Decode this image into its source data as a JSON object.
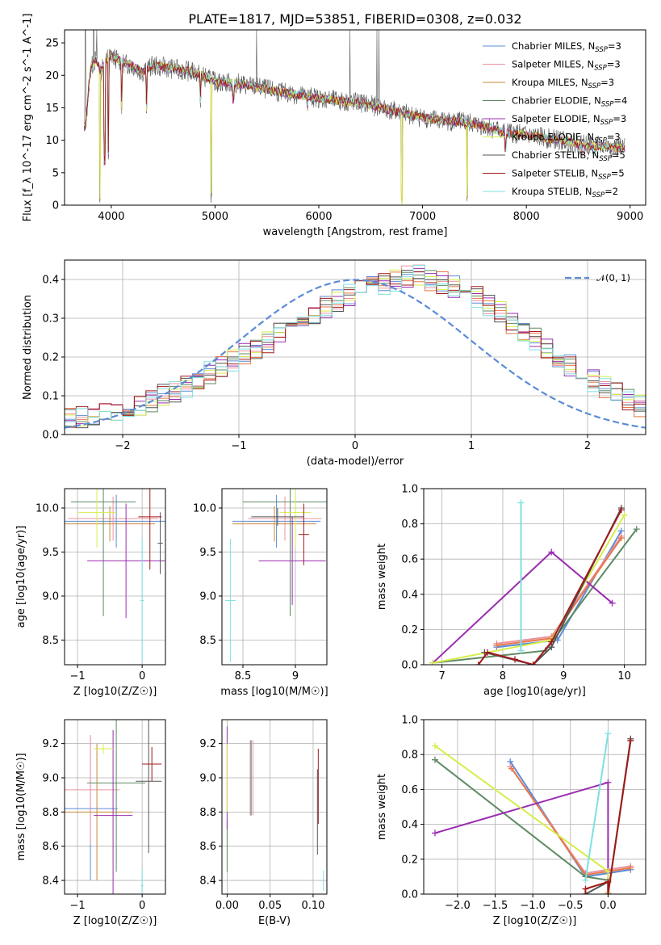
{
  "page": {
    "title": "PLATE=1817, MJD=53851, FIBERID=0308, z=0.032"
  },
  "colors": {
    "Chabrier MILES": "#5b8bd6",
    "Salpeter MILES": "#e9939f",
    "Kroupa MILES": "#c98a3a",
    "Chabrier ELODIE": "#5f8a63",
    "Salpeter ELODIE": "#9b2cb0",
    "Kroupa ELODIE": "#d6ee4a",
    "Chabrier STELIB": "#555555",
    "Salpeter STELIB": "#a11a1a",
    "Kroupa STELIB": "#7fe0e0",
    "orange": "#e8784a",
    "normal": "#5b8bd6"
  },
  "chart_data": [
    {
      "id": "spectrum",
      "type": "line",
      "title": "PLATE=1817, MJD=53851, FIBERID=0308, z=0.032",
      "xlabel": "wavelength [Angstrom, rest frame]",
      "ylabel": "Flux [f_λ 10^-17 erg cm^-2 s^-1 A^-1]",
      "xlim": [
        3550,
        9150
      ],
      "ylim": [
        0,
        27
      ],
      "xticks": [
        4000,
        5000,
        6000,
        7000,
        8000,
        9000
      ],
      "yticks": [
        0,
        5,
        10,
        15,
        20,
        25
      ],
      "grid": false,
      "legend_position": "top-right",
      "legend": [
        {
          "name": "Chabrier MILES",
          "sub": "SSP",
          "n": "3"
        },
        {
          "name": "Salpeter MILES",
          "sub": "SSP",
          "n": "3"
        },
        {
          "name": "Kroupa MILES",
          "sub": "SSP",
          "n": "3"
        },
        {
          "name": "Chabrier ELODIE",
          "sub": "SSP",
          "n": "4"
        },
        {
          "name": "Salpeter ELODIE",
          "sub": "SSP",
          "n": "3"
        },
        {
          "name": "Kroupa ELODIE",
          "sub": "SSP",
          "n": "3"
        },
        {
          "name": "Chabrier STELIB",
          "sub": "SSP",
          "n": "5"
        },
        {
          "name": "Salpeter STELIB",
          "sub": "SSP",
          "n": "5"
        },
        {
          "name": "Kroupa STELIB",
          "sub": "SSP",
          "n": "2"
        }
      ],
      "continuum": [
        [
          3750,
          12
        ],
        [
          3800,
          21
        ],
        [
          3850,
          22.5
        ],
        [
          3900,
          20.5
        ],
        [
          3950,
          22.5
        ],
        [
          4000,
          23
        ],
        [
          4100,
          22
        ],
        [
          4200,
          21.5
        ],
        [
          4300,
          20.5
        ],
        [
          4400,
          21.5
        ],
        [
          4600,
          21
        ],
        [
          4800,
          20.5
        ],
        [
          5000,
          19
        ],
        [
          5200,
          18.8
        ],
        [
          5400,
          18.2
        ],
        [
          5600,
          17.5
        ],
        [
          5800,
          17
        ],
        [
          6000,
          16.5
        ],
        [
          6200,
          16
        ],
        [
          6400,
          15.8
        ],
        [
          6600,
          15
        ],
        [
          6800,
          14.2
        ],
        [
          7000,
          13.5
        ],
        [
          7200,
          13
        ],
        [
          7400,
          12.8
        ],
        [
          7600,
          12.2
        ],
        [
          7800,
          11.2
        ],
        [
          8000,
          10.8
        ],
        [
          8200,
          10.3
        ],
        [
          8400,
          9.8
        ],
        [
          8600,
          9.2
        ],
        [
          8800,
          9
        ],
        [
          8900,
          8.8
        ]
      ],
      "dips": [
        [
          3890,
          0
        ],
        [
          3935,
          6
        ],
        [
          3970,
          7
        ],
        [
          4100,
          14
        ],
        [
          4340,
          14
        ],
        [
          4860,
          15
        ],
        [
          4965,
          0
        ],
        [
          5175,
          15.5
        ],
        [
          5890,
          14.5
        ],
        [
          6800,
          0
        ],
        [
          7430,
          0
        ],
        [
          7800,
          8
        ],
        [
          8500,
          8
        ],
        [
          8540,
          7.5
        ],
        [
          8660,
          7.5
        ]
      ],
      "spikes": [
        [
          3750,
          27
        ],
        [
          3830,
          27
        ],
        [
          3860,
          27
        ],
        [
          5400,
          27
        ],
        [
          6300,
          27
        ],
        [
          6560,
          27
        ],
        [
          6580,
          27
        ]
      ]
    },
    {
      "id": "residuals",
      "type": "line",
      "xlabel": "(data-model)/error",
      "ylabel": "Normed distribution",
      "xlim": [
        -2.5,
        2.5
      ],
      "ylim": [
        0,
        0.45
      ],
      "xticks": [
        -2,
        -1,
        0,
        1,
        2
      ],
      "yticks": [
        0.0,
        0.1,
        0.2,
        0.3,
        0.4
      ],
      "grid": true,
      "legend_position": "top-right",
      "legend": [
        {
          "name": "𝒩(0, 1)"
        }
      ],
      "bin_width": 0.1,
      "base_hist": [
        0.04,
        0.045,
        0.05,
        0.055,
        0.06,
        0.065,
        0.075,
        0.085,
        0.1,
        0.11,
        0.125,
        0.14,
        0.16,
        0.175,
        0.19,
        0.205,
        0.22,
        0.24,
        0.26,
        0.28,
        0.3,
        0.315,
        0.33,
        0.345,
        0.36,
        0.37,
        0.38,
        0.39,
        0.4,
        0.41,
        0.41,
        0.4,
        0.39,
        0.38,
        0.37,
        0.355,
        0.335,
        0.315,
        0.29,
        0.27,
        0.245,
        0.22,
        0.2,
        0.18,
        0.16,
        0.14,
        0.12,
        0.105,
        0.09,
        0.075
      ]
    },
    {
      "id": "age-vs-Z",
      "type": "scatter",
      "xlabel": "Z [log10(Z/Z☉)]",
      "ylabel": "age [log10(age/yr)]",
      "xlim": [
        -1.2,
        0.36
      ],
      "ylim": [
        8.22,
        10.22
      ],
      "xticks": [
        -1,
        0
      ],
      "yticks": [
        8.5,
        9.0,
        9.5,
        10.0
      ],
      "grid": true,
      "points": [
        {
          "series": "Chabrier MILES",
          "x": -0.4,
          "xerr": 0.8,
          "y": 9.85,
          "yerr": 0.3
        },
        {
          "series": "Salpeter MILES",
          "x": -0.45,
          "xerr": 0.7,
          "y": 9.88,
          "yerr": 0.25
        },
        {
          "series": "Kroupa MILES",
          "x": -0.5,
          "xerr": 0.7,
          "y": 9.82,
          "yerr": 0.2
        },
        {
          "series": "Chabrier ELODIE",
          "x": -0.6,
          "xerr": 0.5,
          "y": 10.07,
          "yerr": 1.3
        },
        {
          "series": "Salpeter ELODIE",
          "x": -0.25,
          "xerr": 0.6,
          "y": 9.4,
          "yerr": 0.65
        },
        {
          "series": "Kroupa ELODIE",
          "x": -0.7,
          "xerr": 0.3,
          "y": 9.95,
          "yerr": 0.4
        },
        {
          "series": "Chabrier STELIB",
          "x": 0.28,
          "xerr": 0.04,
          "y": 9.6,
          "yerr": 0.35
        },
        {
          "series": "Salpeter STELIB",
          "x": 0.12,
          "xerr": 0.18,
          "y": 9.9,
          "yerr": 0.6
        },
        {
          "series": "Kroupa STELIB",
          "x": 0.0,
          "xerr": 0.03,
          "y": 8.95,
          "yerr": 0.7
        }
      ]
    },
    {
      "id": "age-vs-mass",
      "type": "scatter",
      "xlabel": "mass [log10(M/M☉)]",
      "ylabel": "",
      "xlim": [
        8.3,
        9.3
      ],
      "ylim": [
        8.22,
        10.22
      ],
      "xticks": [
        8.5,
        9.0
      ],
      "yticks": [
        8.5,
        9.0,
        9.5,
        10.0
      ],
      "grid": true,
      "points": [
        {
          "series": "Chabrier MILES",
          "x": 8.82,
          "xerr": 0.42,
          "y": 9.85,
          "yerr": 0.3
        },
        {
          "series": "Salpeter MILES",
          "x": 8.9,
          "xerr": 0.35,
          "y": 9.88,
          "yerr": 0.25
        },
        {
          "series": "Kroupa MILES",
          "x": 8.8,
          "xerr": 0.4,
          "y": 9.82,
          "yerr": 0.2
        },
        {
          "series": "Chabrier ELODIE",
          "x": 8.95,
          "xerr": 0.45,
          "y": 10.07,
          "yerr": 1.3
        },
        {
          "series": "Salpeter ELODIE",
          "x": 8.97,
          "xerr": 0.32,
          "y": 9.4,
          "yerr": 0.5
        },
        {
          "series": "Kroupa ELODIE",
          "x": 9.0,
          "xerr": 0.15,
          "y": 9.95,
          "yerr": 0.4
        },
        {
          "series": "Chabrier STELIB",
          "x": 8.83,
          "xerr": 0.25,
          "y": 9.9,
          "yerr": 0.1
        },
        {
          "series": "Salpeter STELIB",
          "x": 9.08,
          "xerr": 0.05,
          "y": 9.7,
          "yerr": 0.35
        },
        {
          "series": "Kroupa STELIB",
          "x": 8.38,
          "xerr": 0.05,
          "y": 8.95,
          "yerr": 0.7
        }
      ]
    },
    {
      "id": "mass-weight-vs-age",
      "type": "line",
      "xlabel": "age [log10(age/yr)]",
      "ylabel": "mass weight",
      "xlim": [
        6.7,
        10.35
      ],
      "ylim": [
        0,
        1.0
      ],
      "xticks": [
        7,
        8,
        9,
        10
      ],
      "yticks": [
        0.0,
        0.2,
        0.4,
        0.6,
        0.8,
        1.0
      ],
      "grid": true,
      "series": [
        {
          "name": "Chabrier MILES",
          "x": [
            7.9,
            8.9,
            9.95
          ],
          "y": [
            0.1,
            0.14,
            0.76
          ]
        },
        {
          "name": "Salpeter MILES",
          "x": [
            7.9,
            8.8,
            9.95
          ],
          "y": [
            0.12,
            0.16,
            0.73
          ]
        },
        {
          "name": "Kroupa MILES",
          "x": [
            7.9,
            8.8,
            9.95
          ],
          "y": [
            0.11,
            0.15,
            0.72
          ]
        },
        {
          "name": "Chabrier ELODIE",
          "x": [
            6.85,
            8.7,
            10.2
          ],
          "y": [
            0.01,
            0.08,
            0.77
          ]
        },
        {
          "name": "Salpeter ELODIE",
          "x": [
            6.85,
            8.8,
            9.8
          ],
          "y": [
            0.01,
            0.64,
            0.35
          ]
        },
        {
          "name": "Kroupa ELODIE",
          "x": [
            6.85,
            8.8,
            10.0
          ],
          "y": [
            0.01,
            0.14,
            0.85
          ]
        },
        {
          "name": "Chabrier STELIB",
          "x": [
            7.7,
            8.5,
            8.8,
            9.95
          ],
          "y": [
            0.07,
            0.0,
            0.1,
            0.89
          ]
        },
        {
          "name": "Salpeter STELIB",
          "x": [
            7.6,
            7.75,
            8.2,
            8.5,
            8.8,
            9.95
          ],
          "y": [
            0.0,
            0.07,
            0.03,
            0.0,
            0.13,
            0.88
          ]
        },
        {
          "name": "Kroupa STELIB",
          "x": [
            8.3,
            8.3
          ],
          "y": [
            0.08,
            0.92
          ]
        }
      ]
    },
    {
      "id": "mass-vs-Z",
      "type": "scatter",
      "xlabel": "Z [log10(Z/Z☉)]",
      "ylabel": "mass [log10(M/M☉)]",
      "xlim": [
        -1.2,
        0.36
      ],
      "ylim": [
        8.32,
        9.34
      ],
      "xticks": [
        -1,
        0
      ],
      "yticks": [
        8.4,
        8.6,
        8.8,
        9.0,
        9.2
      ],
      "grid": true,
      "points": [
        {
          "series": "Chabrier MILES",
          "x": -0.8,
          "xerr": 0.42,
          "y": 8.82,
          "yerr": 0.42
        },
        {
          "series": "Salpeter MILES",
          "x": -0.8,
          "xerr": 0.45,
          "y": 8.93,
          "yerr": 0.32
        },
        {
          "series": "Kroupa MILES",
          "x": -0.7,
          "xerr": 0.55,
          "y": 8.8,
          "yerr": 0.4
        },
        {
          "series": "Chabrier ELODIE",
          "x": -0.4,
          "xerr": 0.45,
          "y": 8.97,
          "yerr": 0.52
        },
        {
          "series": "Salpeter ELODIE",
          "x": -0.45,
          "xerr": 0.3,
          "y": 8.78,
          "yerr": 0.5
        },
        {
          "series": "Kroupa ELODIE",
          "x": -0.6,
          "xerr": 0.15,
          "y": 9.17,
          "yerr": 0.03
        },
        {
          "series": "Chabrier STELIB",
          "x": 0.1,
          "xerr": 0.2,
          "y": 8.98,
          "yerr": 0.42
        },
        {
          "series": "Salpeter STELIB",
          "x": 0.15,
          "xerr": 0.15,
          "y": 9.08,
          "yerr": 0.1
        },
        {
          "series": "Kroupa STELIB",
          "x": 0.0,
          "xerr": 0.02,
          "y": 8.37,
          "yerr": 0.1
        }
      ]
    },
    {
      "id": "mass-vs-EBV",
      "type": "scatter",
      "xlabel": "E(B-V)",
      "ylabel": "",
      "xlim": [
        -0.006,
        0.116
      ],
      "ylim": [
        8.32,
        9.34
      ],
      "xticks": [
        0.0,
        0.05,
        0.1
      ],
      "tick_labels": [
        "0.00",
        "0.05",
        "0.10"
      ],
      "yticks": [
        8.4,
        8.6,
        8.8,
        9.0,
        9.2
      ],
      "grid": true,
      "points": [
        {
          "series": "Chabrier MILES",
          "x": 0.028,
          "xerr": 0,
          "y": 9.0,
          "yerr": 0.22
        },
        {
          "series": "Salpeter MILES",
          "x": 0.03,
          "xerr": 0,
          "y": 9.0,
          "yerr": 0.22
        },
        {
          "series": "Kroupa MILES",
          "x": 0.027,
          "xerr": 0,
          "y": 9.0,
          "yerr": 0.22
        },
        {
          "series": "Chabrier ELODIE",
          "x": 0.0,
          "xerr": 0,
          "y": 8.6,
          "yerr": 0.15
        },
        {
          "series": "Salpeter ELODIE",
          "x": 0.0,
          "xerr": 0,
          "y": 9.0,
          "yerr": 0.3
        },
        {
          "series": "Kroupa ELODIE",
          "x": 0.0,
          "xerr": 0,
          "y": 9.0,
          "yerr": 0.2
        },
        {
          "series": "Chabrier STELIB",
          "x": 0.105,
          "xerr": 0,
          "y": 8.8,
          "yerr": 0.25
        },
        {
          "series": "Salpeter STELIB",
          "x": 0.106,
          "xerr": 0,
          "y": 8.95,
          "yerr": 0.22
        },
        {
          "series": "Kroupa STELIB",
          "x": 0.112,
          "xerr": 0,
          "y": 8.4,
          "yerr": 0.06
        }
      ]
    },
    {
      "id": "mass-weight-vs-Z",
      "type": "line",
      "xlabel": "Z [log10(Z/Z☉)]",
      "ylabel": "mass weight",
      "xlim": [
        -2.45,
        0.5
      ],
      "ylim": [
        0,
        1.0
      ],
      "xticks": [
        -2.0,
        -1.5,
        -1.0,
        -0.5,
        0.0
      ],
      "tick_labels": [
        "−2.0",
        "−1.5",
        "−1.0",
        "−0.5",
        "0.0"
      ],
      "yticks": [
        0.0,
        0.2,
        0.4,
        0.6,
        0.8,
        1.0
      ],
      "grid": true,
      "series": [
        {
          "name": "Chabrier MILES",
          "x": [
            -1.3,
            -0.3,
            0.3
          ],
          "y": [
            0.76,
            0.1,
            0.14
          ]
        },
        {
          "name": "Salpeter MILES",
          "x": [
            -1.3,
            -0.3,
            0.3
          ],
          "y": [
            0.73,
            0.12,
            0.16
          ]
        },
        {
          "name": "Kroupa MILES",
          "x": [
            -1.28,
            -0.3,
            0.3
          ],
          "y": [
            0.72,
            0.11,
            0.15
          ]
        },
        {
          "name": "Chabrier ELODIE",
          "x": [
            -2.3,
            -0.3,
            0.0
          ],
          "y": [
            0.77,
            0.1,
            0.08
          ]
        },
        {
          "name": "Salpeter ELODIE",
          "x": [
            -2.3,
            0.0,
            0.0
          ],
          "y": [
            0.35,
            0.64,
            0.01
          ]
        },
        {
          "name": "Kroupa ELODIE",
          "x": [
            -2.3,
            0.0,
            0.0
          ],
          "y": [
            0.85,
            0.13,
            0.01
          ]
        },
        {
          "name": "Chabrier STELIB",
          "x": [
            -0.3,
            0.0,
            0.0,
            0.3
          ],
          "y": [
            0.0,
            0.07,
            0.0,
            0.89
          ]
        },
        {
          "name": "Salpeter STELIB",
          "x": [
            -0.3,
            -0.3,
            0.0,
            0.0,
            0.3
          ],
          "y": [
            0.0,
            0.03,
            0.07,
            0.0,
            0.88
          ]
        },
        {
          "name": "Kroupa STELIB",
          "x": [
            -0.3,
            0.0
          ],
          "y": [
            0.08,
            0.92
          ]
        }
      ]
    }
  ]
}
